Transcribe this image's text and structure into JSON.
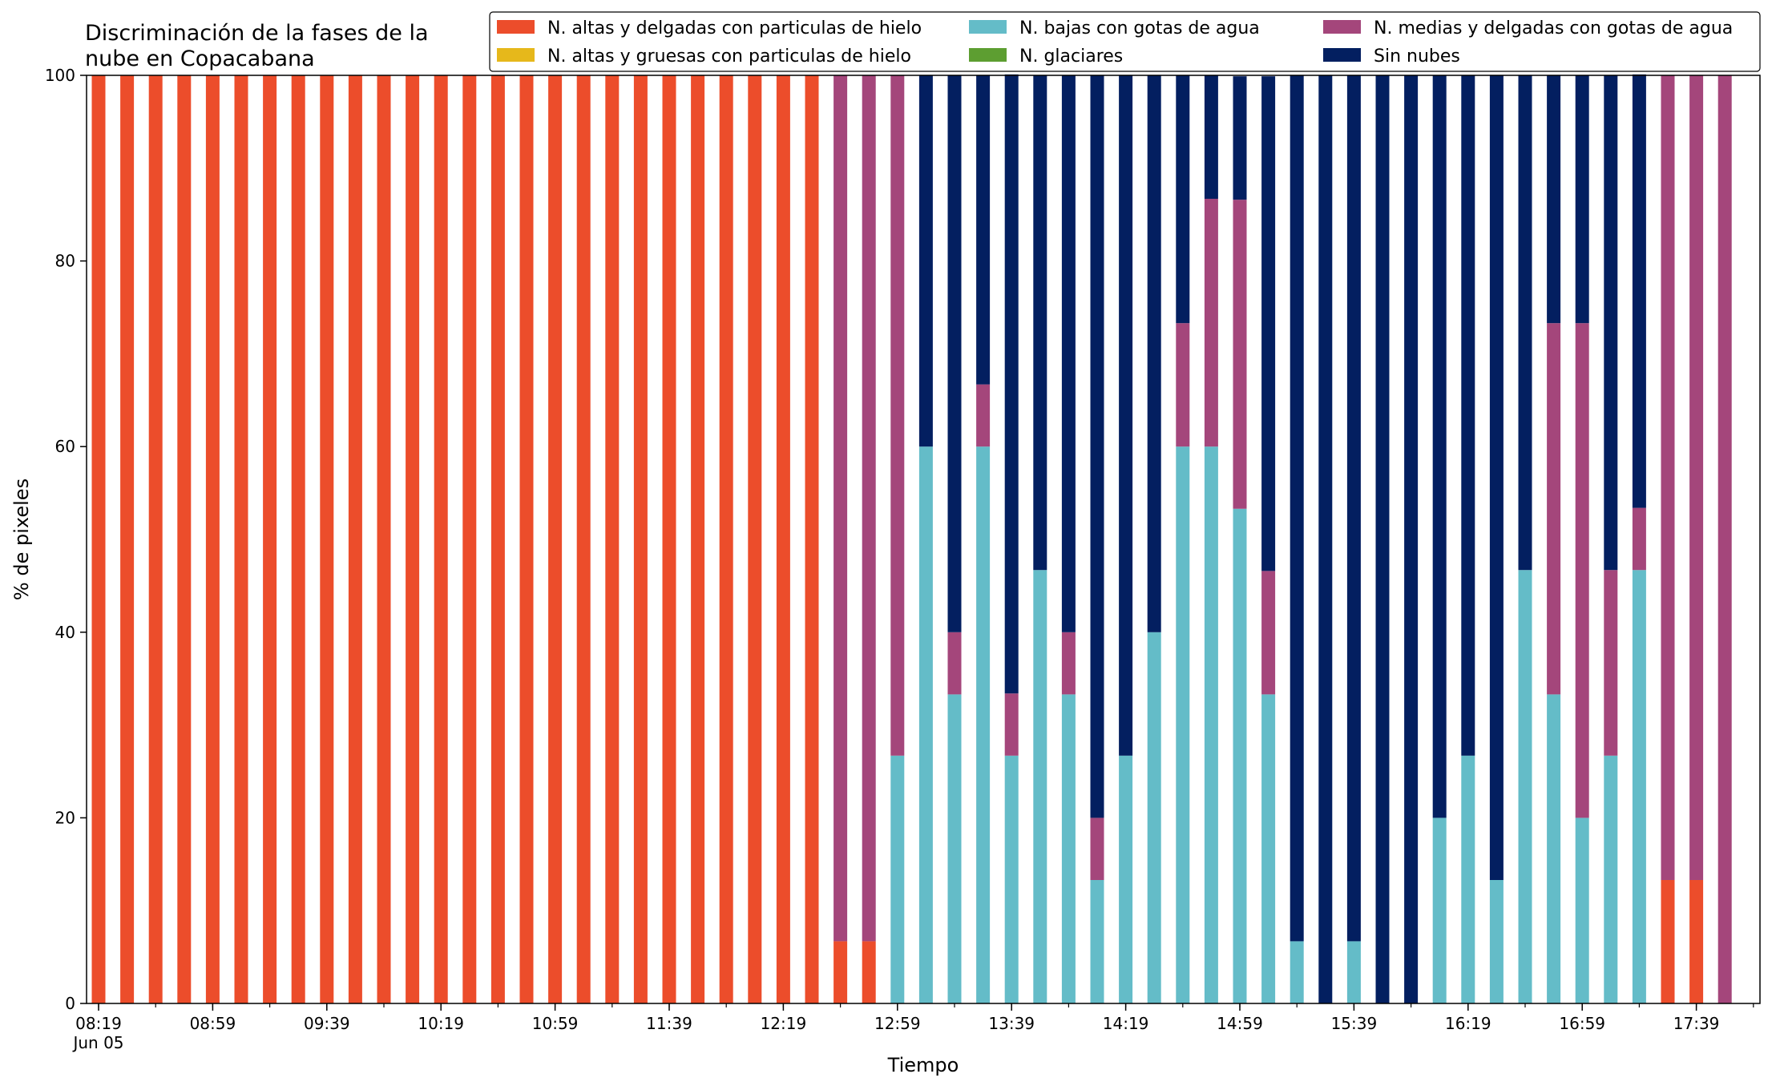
{
  "chart_data": {
    "type": "bar",
    "stacked": true,
    "title": "Discriminación de la fases de la\nnube en Copacabana",
    "xlabel": "Tiempo",
    "ylabel": "% de pixeles",
    "ylim": [
      0,
      100
    ],
    "yticks": [
      "0",
      "20",
      "40",
      "60",
      "80",
      "100"
    ],
    "x_tick_labels": [
      "08:19\nJun 05",
      "08:59",
      "09:39",
      "10:19",
      "10:59",
      "11:39",
      "12:19",
      "12:59",
      "13:39",
      "14:19",
      "14:59",
      "15:39",
      "16:19",
      "16:59",
      "17:39"
    ],
    "grid": false,
    "legend_position": "top-right",
    "categories": [
      "08:19",
      "08:29",
      "08:39",
      "08:49",
      "08:59",
      "09:09",
      "09:19",
      "09:29",
      "09:39",
      "09:49",
      "09:59",
      "10:09",
      "10:19",
      "10:29",
      "10:39",
      "10:49",
      "10:59",
      "11:09",
      "11:19",
      "11:29",
      "11:39",
      "11:49",
      "11:59",
      "12:09",
      "12:19",
      "12:29",
      "12:39",
      "12:49",
      "12:59",
      "13:09",
      "13:19",
      "13:29",
      "13:39",
      "13:49",
      "13:59",
      "14:09",
      "14:19",
      "14:29",
      "14:39",
      "14:49",
      "14:59",
      "15:09",
      "15:19",
      "15:29",
      "15:39",
      "15:49",
      "15:59",
      "16:09",
      "16:19",
      "16:29",
      "16:39",
      "16:49",
      "16:59",
      "17:09",
      "17:19",
      "17:29",
      "17:39",
      "17:49"
    ],
    "series": [
      {
        "name": "N. altas y delgadas con particulas de hielo",
        "color": "#ec4d2b",
        "values": [
          100,
          100,
          100,
          100,
          100,
          100,
          100,
          100,
          100,
          100,
          100,
          100,
          100,
          100,
          100,
          100,
          100,
          100,
          100,
          100,
          100,
          100,
          100,
          100,
          100,
          100,
          6.7,
          6.7,
          0,
          0,
          0,
          0,
          0,
          0,
          0,
          0,
          0,
          0,
          0,
          0,
          0,
          0,
          0,
          0,
          0,
          0,
          0,
          0,
          0,
          0,
          0,
          0,
          0,
          0,
          0,
          13.3,
          13.3,
          0
        ]
      },
      {
        "name": "N. altas y gruesas con particulas de hielo",
        "color": "#e6b81b",
        "values": [
          0,
          0,
          0,
          0,
          0,
          0,
          0,
          0,
          0,
          0,
          0,
          0,
          0,
          0,
          0,
          0,
          0,
          0,
          0,
          0,
          0,
          0,
          0,
          0,
          0,
          0,
          0,
          0,
          0,
          0,
          0,
          0,
          0,
          0,
          0,
          0,
          0,
          0,
          0,
          0,
          0,
          0,
          0,
          0,
          0,
          0,
          0,
          0,
          0,
          0,
          0,
          0,
          0,
          0,
          0,
          0,
          0,
          0
        ]
      },
      {
        "name": "N. bajas con gotas de agua",
        "color": "#64bcc8",
        "values": [
          0,
          0,
          0,
          0,
          0,
          0,
          0,
          0,
          0,
          0,
          0,
          0,
          0,
          0,
          0,
          0,
          0,
          0,
          0,
          0,
          0,
          0,
          0,
          0,
          0,
          0,
          0,
          0,
          26.7,
          60,
          33.3,
          60,
          26.7,
          46.7,
          33.3,
          13.3,
          26.7,
          40,
          60,
          60,
          53.3,
          33.3,
          6.7,
          0,
          6.7,
          0,
          0,
          20,
          26.7,
          13.3,
          46.7,
          33.3,
          20,
          26.7,
          46.7,
          0,
          0,
          0
        ]
      },
      {
        "name": "N. glaciares",
        "color": "#5d9e31",
        "values": [
          0,
          0,
          0,
          0,
          0,
          0,
          0,
          0,
          0,
          0,
          0,
          0,
          0,
          0,
          0,
          0,
          0,
          0,
          0,
          0,
          0,
          0,
          0,
          0,
          0,
          0,
          0,
          0,
          0,
          0,
          0,
          0,
          0,
          0,
          0,
          0,
          0,
          0,
          0,
          0,
          0,
          0,
          0,
          0,
          0,
          0,
          0,
          0,
          0,
          0,
          0,
          0,
          0,
          0,
          0,
          0,
          0,
          0
        ]
      },
      {
        "name": "N. medias y delgadas con gotas de agua",
        "color": "#a4467b",
        "values": [
          0,
          0,
          0,
          0,
          0,
          0,
          0,
          0,
          0,
          0,
          0,
          0,
          0,
          0,
          0,
          0,
          0,
          0,
          0,
          0,
          0,
          0,
          0,
          0,
          0,
          0,
          93.3,
          93.3,
          73.3,
          0,
          6.7,
          6.7,
          6.7,
          0,
          6.7,
          6.7,
          0,
          0,
          13.3,
          26.7,
          33.3,
          13.3,
          0,
          0,
          0,
          0,
          0,
          0,
          0,
          0,
          0,
          40,
          53.3,
          20,
          6.7,
          86.7,
          86.7,
          100
        ]
      },
      {
        "name": "Sin nubes",
        "color": "#031f60",
        "values": [
          0,
          0,
          0,
          0,
          0,
          0,
          0,
          0,
          0,
          0,
          0,
          0,
          0,
          0,
          0,
          0,
          0,
          0,
          0,
          0,
          0,
          0,
          0,
          0,
          0,
          0,
          0,
          0,
          0,
          40,
          60,
          33.3,
          66.7,
          53.3,
          60,
          80,
          73.3,
          60,
          26.7,
          13.3,
          13.3,
          53.3,
          93.3,
          100,
          93.3,
          100,
          100,
          80,
          73.3,
          86.7,
          53.3,
          26.7,
          26.7,
          53.3,
          46.7,
          0,
          0,
          0
        ]
      }
    ]
  }
}
